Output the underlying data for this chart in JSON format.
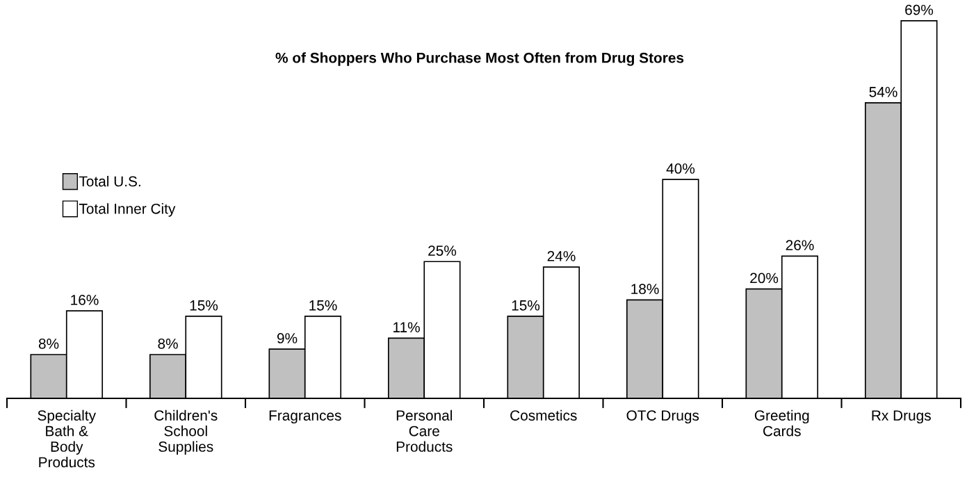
{
  "chart_data": {
    "type": "bar",
    "title": "% of Shoppers Who Purchase Most Often from Drug Stores",
    "categories": [
      "Specialty\nBath &\nBody\nProducts",
      "Children's\nSchool\nSupplies",
      "Fragrances",
      "Personal\nCare\nProducts",
      "Cosmetics",
      "OTC Drugs",
      "Greeting\nCards",
      "Rx Drugs"
    ],
    "series": [
      {
        "name": "Total U.S.",
        "color": "#c0c0c0",
        "values": [
          8,
          8,
          9,
          11,
          15,
          18,
          20,
          54
        ],
        "value_labels": [
          "8%",
          "8%",
          "9%",
          "11%",
          "15%",
          "18%",
          "20%",
          "54%"
        ]
      },
      {
        "name": "Total Inner City",
        "color": "#ffffff",
        "values": [
          16,
          15,
          15,
          25,
          24,
          40,
          26,
          69
        ],
        "value_labels": [
          "16%",
          "15%",
          "15%",
          "25%",
          "24%",
          "40%",
          "26%",
          "69%"
        ]
      }
    ],
    "legend": "left",
    "grid": false
  }
}
